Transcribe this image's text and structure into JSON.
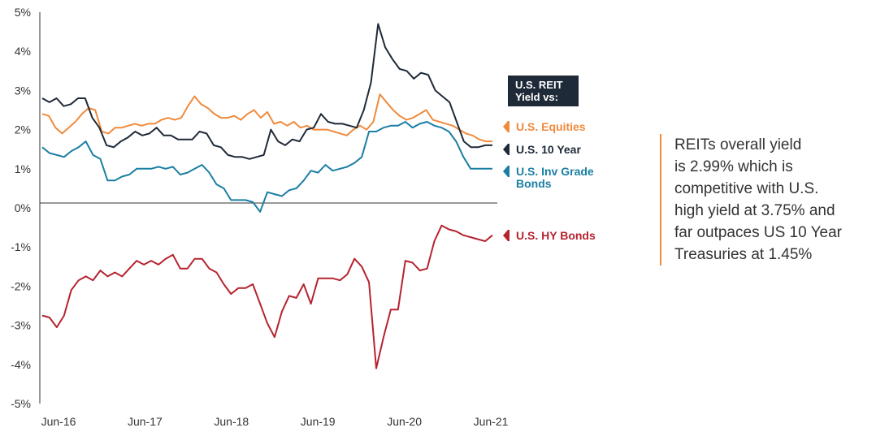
{
  "legend_title": "U.S. REIT\nYield vs:",
  "note": "REITs overall yield\nis 2.99% which is\ncompetitive with U.S.\nhigh yield at 3.75% and\nfar outpaces US 10 Year\nTreasuries at 1.45%",
  "chart_data": {
    "type": "line",
    "x_ticks": [
      "Jun-16",
      "Jun-17",
      "Jun-18",
      "Jun-19",
      "Jun-20",
      "Jun-21"
    ],
    "y_ticks": [
      "5%",
      "4%",
      "3%",
      "2%",
      "1%",
      "0%",
      "-1%",
      "-2%",
      "-3%",
      "-4%",
      "-5%"
    ],
    "ylim": [
      -5,
      5
    ],
    "x_start": "2016-06",
    "x_end": "2021-06",
    "series": [
      {
        "name": "U.S. Equities",
        "color": "#f08a3c",
        "values": [
          2.4,
          2.35,
          2.05,
          1.9,
          2.05,
          2.2,
          2.4,
          2.55,
          2.5,
          1.95,
          1.9,
          2.05,
          2.05,
          2.1,
          2.15,
          2.1,
          2.15,
          2.15,
          2.25,
          2.3,
          2.25,
          2.3,
          2.6,
          2.85,
          2.65,
          2.55,
          2.4,
          2.3,
          2.3,
          2.35,
          2.25,
          2.4,
          2.5,
          2.3,
          2.45,
          2.15,
          2.2,
          2.1,
          2.2,
          2.05,
          2.1,
          2.0,
          2.0,
          2.0,
          1.95,
          1.9,
          1.85,
          2.0,
          2.1,
          2.0,
          2.2,
          2.9,
          2.7,
          2.5,
          2.35,
          2.25,
          2.3,
          2.4,
          2.5,
          2.25,
          2.2,
          2.15,
          2.1,
          2.0,
          1.9,
          1.85,
          1.75,
          1.7,
          1.7
        ]
      },
      {
        "name": "U.S. 10 Year",
        "color": "#1f2a38",
        "values": [
          2.8,
          2.7,
          2.8,
          2.6,
          2.65,
          2.8,
          2.8,
          2.3,
          2.05,
          1.6,
          1.55,
          1.7,
          1.8,
          1.95,
          1.85,
          1.9,
          2.05,
          1.85,
          1.85,
          1.75,
          1.75,
          1.75,
          1.95,
          1.9,
          1.6,
          1.55,
          1.35,
          1.3,
          1.3,
          1.25,
          1.3,
          1.35,
          2.0,
          1.7,
          1.6,
          1.75,
          1.7,
          2.0,
          2.05,
          2.4,
          2.2,
          2.15,
          2.15,
          2.1,
          2.05,
          2.5,
          3.2,
          4.7,
          4.1,
          3.8,
          3.55,
          3.5,
          3.3,
          3.45,
          3.4,
          3.0,
          2.85,
          2.7,
          2.2,
          1.7,
          1.55,
          1.55,
          1.6,
          1.6
        ]
      },
      {
        "name": "U.S. Inv Grade\nBonds",
        "color": "#1a7fa3",
        "values": [
          1.55,
          1.4,
          1.35,
          1.3,
          1.45,
          1.55,
          1.7,
          1.35,
          1.25,
          0.7,
          0.7,
          0.8,
          0.85,
          1.0,
          1.0,
          1.0,
          1.05,
          1.0,
          1.05,
          0.85,
          0.9,
          1.0,
          1.1,
          0.9,
          0.6,
          0.5,
          0.2,
          0.2,
          0.2,
          0.15,
          -0.1,
          0.4,
          0.35,
          0.3,
          0.45,
          0.5,
          0.7,
          0.95,
          0.9,
          1.1,
          0.95,
          1.0,
          1.05,
          1.15,
          1.3,
          1.95,
          1.95,
          2.05,
          2.1,
          2.1,
          2.2,
          2.05,
          2.15,
          2.2,
          2.1,
          2.05,
          1.95,
          1.7,
          1.3,
          1.0,
          1.0,
          1.0,
          1.0
        ]
      },
      {
        "name": "U.S. HY Bonds",
        "color": "#b5232f",
        "values": [
          -2.75,
          -2.8,
          -3.05,
          -2.75,
          -2.1,
          -1.85,
          -1.75,
          -1.85,
          -1.6,
          -1.75,
          -1.65,
          -1.75,
          -1.55,
          -1.35,
          -1.45,
          -1.35,
          -1.45,
          -1.3,
          -1.2,
          -1.55,
          -1.55,
          -1.3,
          -1.3,
          -1.55,
          -1.65,
          -1.95,
          -2.2,
          -2.05,
          -2.05,
          -1.95,
          -2.45,
          -2.95,
          -3.3,
          -2.65,
          -2.25,
          -2.3,
          -1.95,
          -2.45,
          -1.8,
          -1.8,
          -1.8,
          -1.85,
          -1.7,
          -1.3,
          -1.5,
          -1.9,
          -4.1,
          -3.3,
          -2.6,
          -2.6,
          -1.35,
          -1.4,
          -1.6,
          -1.55,
          -0.85,
          -0.45,
          -0.55,
          -0.6,
          -0.7,
          -0.75,
          -0.8,
          -0.85,
          -0.7
        ]
      }
    ]
  }
}
